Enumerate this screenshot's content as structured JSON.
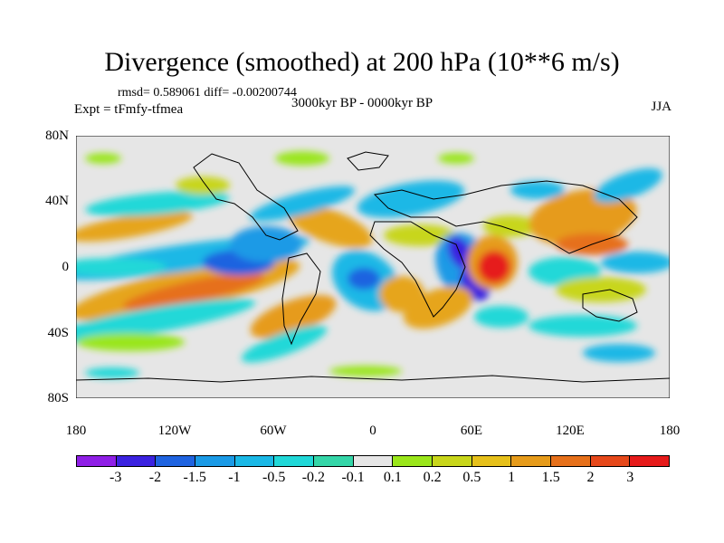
{
  "title": "Divergence (smoothed) at 200 hPa (10**6 m/s)",
  "stats": "rmsd= 0.589061 diff= -0.00200744",
  "expt": "Expt = tFmfy-tfmea",
  "period": "3000kyr BP - 0000kyr BP",
  "season": "JJA",
  "lat_labels": [
    "80N",
    "40N",
    "0",
    "40S",
    "80S"
  ],
  "lon_labels": [
    "180",
    "120W",
    "60W",
    "0",
    "60E",
    "120E",
    "180"
  ],
  "colorbar": {
    "labels": [
      "-3",
      "-2",
      "-1.5",
      "-1",
      "-0.5",
      "-0.2",
      "-0.1",
      "0.1",
      "0.2",
      "0.5",
      "1",
      "1.5",
      "2",
      "3"
    ],
    "colors": [
      "#8f1fe6",
      "#3b22e0",
      "#1f63e0",
      "#1a9ae6",
      "#1ab8e6",
      "#20d8d8",
      "#34d6a8",
      "#e6e6e6",
      "#9ae61a",
      "#c8d61a",
      "#e6c01a",
      "#e69b1a",
      "#e6701a",
      "#e6481a",
      "#e61a1a"
    ]
  }
}
